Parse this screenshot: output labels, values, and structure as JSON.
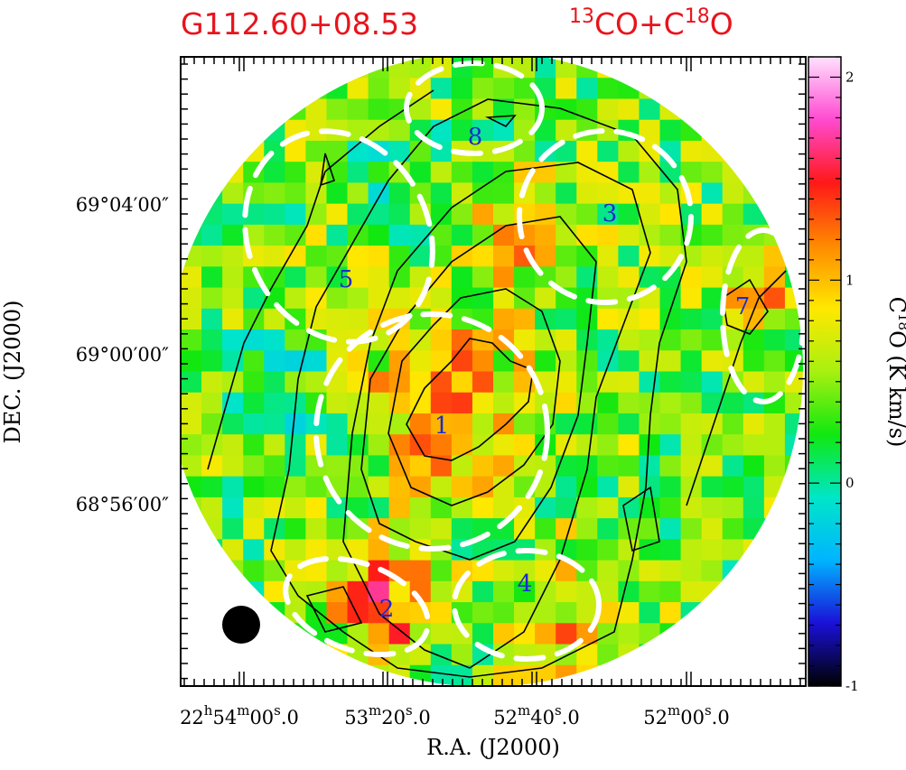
{
  "header": {
    "source_name": "G112.60+08.53",
    "tracer": {
      "iso1": "13",
      "mol1": "CO+C",
      "iso2": "18",
      "mol2": "O"
    }
  },
  "chart_data": {
    "type": "heatmap",
    "xlabel": "R.A. (J2000)",
    "ylabel": "DEC. (J2000)",
    "x_ticks": [
      {
        "h": "22",
        "m": "54",
        "s": "00.0",
        "show_h": true
      },
      {
        "h": "",
        "m": "53",
        "s": "20.0",
        "show_h": false
      },
      {
        "h": "",
        "m": "52",
        "s": "40.0",
        "show_h": false
      },
      {
        "h": "",
        "m": "52",
        "s": "00.0",
        "show_h": false
      }
    ],
    "y_ticks": [
      "69°04′00″",
      "69°00′00″",
      "68°56′00″"
    ],
    "colorbar": {
      "label": {
        "prefix": "C",
        "iso": "18",
        "suffix": "O  (K km/s)"
      },
      "range": [
        -1,
        2.1
      ],
      "tick_values": [
        -1,
        0,
        1,
        2
      ],
      "tick_labels": [
        "-1",
        "0",
        "1",
        "2"
      ],
      "colors": [
        "#000000",
        "#1a10d8",
        "#00b4ff",
        "#00e6c8",
        "#10e810",
        "#a8f010",
        "#ffe800",
        "#ff8a00",
        "#ff1818",
        "#ff4ad0",
        "#ffe0ff"
      ]
    },
    "grid_cols": 30,
    "grid_rows": 30,
    "clumps": [
      "1",
      "2",
      "3",
      "4",
      "5",
      "7",
      "8"
    ],
    "colors": {
      "title": "#e8141c",
      "clump_labels": "#1a2bd0",
      "contours": "#000000",
      "ellipses": "#ffffff"
    },
    "beam": "filled-circle"
  }
}
